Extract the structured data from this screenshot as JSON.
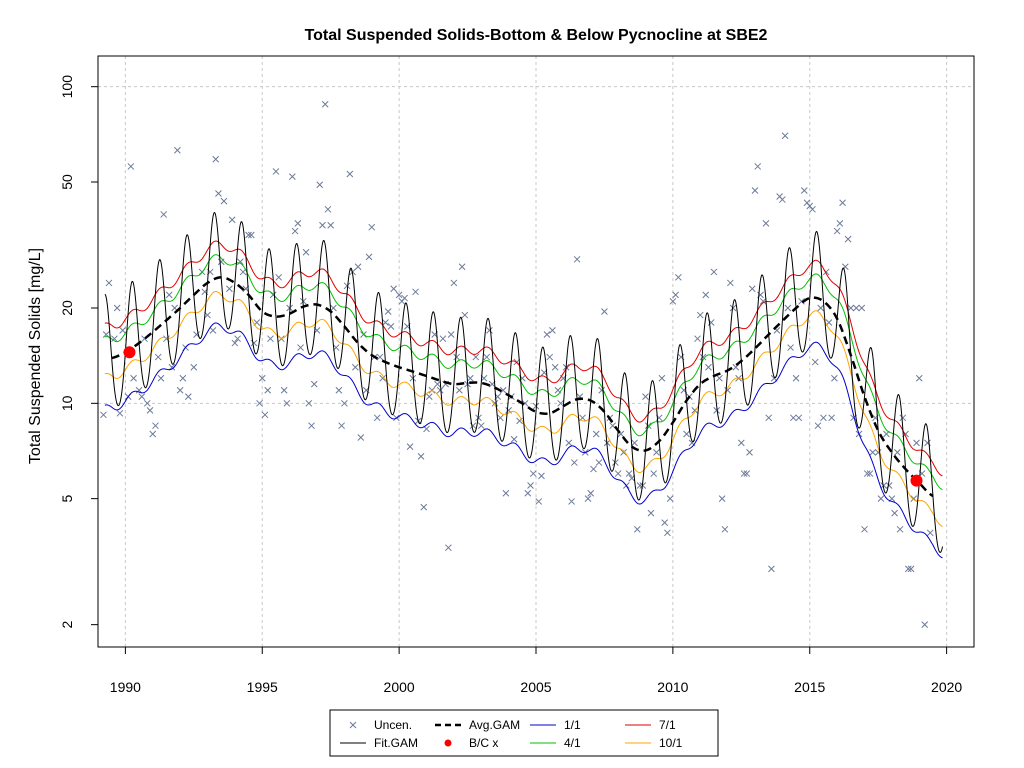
{
  "chart_data": {
    "type": "line",
    "title": "Total Suspended Solids-Bottom & Below Pycnocline at SBE2",
    "xlabel": "",
    "ylabel": "Total Suspended Solids [mg/L]",
    "xlim": [
      1989.0,
      2021.0
    ],
    "ylim": [
      1.7,
      125
    ],
    "y_scale": "log",
    "x_ticks": [
      1990,
      1995,
      2000,
      2005,
      2010,
      2015,
      2020
    ],
    "y_ticks": [
      2,
      5,
      10,
      20,
      50,
      100
    ],
    "grid": true,
    "legend_position": "bottom",
    "legend": [
      {
        "label": "Uncen.",
        "symbol": "x",
        "color": "#6b7a99"
      },
      {
        "label": "Fit.GAM",
        "symbol": "line",
        "color": "#000000"
      },
      {
        "label": "Avg.GAM",
        "symbol": "dashed-line",
        "color": "#000000"
      },
      {
        "label": "B/C x",
        "symbol": "dot",
        "color": "#ff0000"
      },
      {
        "label": "1/1",
        "symbol": "line",
        "color": "#0000cd"
      },
      {
        "label": "4/1",
        "symbol": "line",
        "color": "#00c000"
      },
      {
        "label": "7/1",
        "symbol": "line",
        "color": "#e00000"
      },
      {
        "label": "10/1",
        "symbol": "line",
        "color": "#ffa500"
      }
    ],
    "avg_gam": {
      "x": [
        1989.5,
        1990,
        1990.5,
        1991,
        1991.5,
        1992,
        1992.5,
        1993,
        1993.5,
        1994,
        1994.5,
        1995,
        1995.5,
        1996,
        1996.5,
        1997,
        1997.5,
        1998,
        1998.5,
        1999,
        1999.5,
        2000,
        2000.5,
        2001,
        2001.5,
        2002,
        2002.5,
        2003,
        2003.5,
        2004,
        2004.5,
        2005,
        2005.5,
        2006,
        2006.5,
        2007,
        2007.5,
        2008,
        2008.5,
        2009,
        2009.5,
        2010,
        2010.5,
        2011,
        2011.5,
        2012,
        2012.5,
        2013,
        2013.5,
        2014,
        2014.5,
        2015,
        2015.5,
        2016,
        2016.5,
        2017,
        2017.5,
        2018,
        2018.5,
        2019,
        2019.5
      ],
      "y": [
        13.9,
        14.5,
        15.5,
        16.8,
        18.3,
        20.0,
        22.0,
        24.0,
        25.0,
        24.0,
        22.0,
        19.5,
        18.8,
        19.2,
        20.2,
        20.5,
        19.5,
        17.5,
        15.5,
        14.2,
        13.5,
        13.0,
        12.6,
        12.2,
        11.8,
        11.5,
        11.6,
        11.6,
        11.2,
        10.6,
        10.0,
        9.4,
        9.3,
        9.8,
        10.3,
        10.2,
        9.4,
        8.2,
        7.3,
        7.1,
        7.6,
        8.7,
        10.2,
        11.5,
        12.2,
        12.7,
        13.6,
        14.9,
        16.5,
        18.2,
        20.0,
        21.5,
        21.0,
        18.5,
        14.2,
        10.5,
        8.2,
        7.0,
        6.2,
        5.6,
        5.1
      ]
    },
    "fit_gam_curves": [
      {
        "name": "1/1",
        "color": "#0000cd",
        "ratio": 0.7
      },
      {
        "name": "4/1",
        "color": "#00c000",
        "ratio": 1.15
      },
      {
        "name": "7/1",
        "color": "#e00000",
        "ratio": 1.27
      },
      {
        "name": "10/1",
        "color": "#ffa500",
        "ratio": 0.88
      }
    ],
    "fit_gam": {
      "x_start": 1989.25,
      "x_end": 2019.85,
      "seasonal_amplitude_log": 0.21,
      "peak_month_fraction": 0.25
    },
    "bc_points": [
      {
        "x": 1990.15,
        "y": 14.5
      },
      {
        "x": 2018.9,
        "y": 5.7
      }
    ],
    "observations": [
      [
        1989.2,
        9.2
      ],
      [
        1989.3,
        16.5
      ],
      [
        1989.4,
        24
      ],
      [
        1989.6,
        16
      ],
      [
        1989.7,
        20
      ],
      [
        1989.8,
        9.3
      ],
      [
        1989.9,
        17
      ],
      [
        1990.1,
        10.5
      ],
      [
        1990.2,
        56
      ],
      [
        1990.3,
        12
      ],
      [
        1990.5,
        11
      ],
      [
        1990.6,
        10.5
      ],
      [
        1990.7,
        16
      ],
      [
        1990.8,
        10
      ],
      [
        1990.9,
        9.5
      ],
      [
        1991.0,
        8
      ],
      [
        1991.1,
        8.5
      ],
      [
        1991.2,
        14
      ],
      [
        1991.3,
        12
      ],
      [
        1991.4,
        39.5
      ],
      [
        1991.5,
        16
      ],
      [
        1991.6,
        22
      ],
      [
        1991.7,
        13
      ],
      [
        1991.8,
        20
      ],
      [
        1991.9,
        63
      ],
      [
        1992.0,
        11
      ],
      [
        1992.1,
        12
      ],
      [
        1992.2,
        15
      ],
      [
        1992.3,
        10.5
      ],
      [
        1992.5,
        13
      ],
      [
        1992.6,
        16.5
      ],
      [
        1992.8,
        26
      ],
      [
        1992.9,
        22.5
      ],
      [
        1993.0,
        19
      ],
      [
        1993.1,
        26
      ],
      [
        1993.2,
        17
      ],
      [
        1993.3,
        59
      ],
      [
        1993.4,
        46
      ],
      [
        1993.5,
        28
      ],
      [
        1993.6,
        43.5
      ],
      [
        1993.8,
        23
      ],
      [
        1993.9,
        38
      ],
      [
        1994.0,
        15.5
      ],
      [
        1994.1,
        16
      ],
      [
        1994.2,
        28
      ],
      [
        1994.3,
        26
      ],
      [
        1994.4,
        23
      ],
      [
        1994.5,
        34
      ],
      [
        1994.6,
        34
      ],
      [
        1994.7,
        15.5
      ],
      [
        1994.8,
        18
      ],
      [
        1994.9,
        10
      ],
      [
        1995.0,
        12
      ],
      [
        1995.1,
        9.2
      ],
      [
        1995.2,
        11
      ],
      [
        1995.3,
        16
      ],
      [
        1995.4,
        22
      ],
      [
        1995.5,
        54
      ],
      [
        1995.6,
        25
      ],
      [
        1995.7,
        16
      ],
      [
        1995.8,
        11
      ],
      [
        1995.9,
        10
      ],
      [
        1996.0,
        20
      ],
      [
        1996.1,
        52
      ],
      [
        1996.2,
        35
      ],
      [
        1996.3,
        37
      ],
      [
        1996.4,
        15
      ],
      [
        1996.5,
        21
      ],
      [
        1996.6,
        30
      ],
      [
        1996.7,
        10
      ],
      [
        1996.8,
        8.5
      ],
      [
        1996.9,
        11.5
      ],
      [
        1997.0,
        17
      ],
      [
        1997.1,
        49
      ],
      [
        1997.2,
        36.5
      ],
      [
        1997.3,
        88
      ],
      [
        1997.4,
        41
      ],
      [
        1997.5,
        36.5
      ],
      [
        1997.6,
        20
      ],
      [
        1997.7,
        15
      ],
      [
        1997.8,
        11
      ],
      [
        1997.9,
        8.5
      ],
      [
        1998.0,
        10
      ],
      [
        1998.1,
        23.5
      ],
      [
        1998.2,
        53
      ],
      [
        1998.3,
        26
      ],
      [
        1998.4,
        13
      ],
      [
        1998.5,
        27
      ],
      [
        1998.6,
        7.8
      ],
      [
        1998.7,
        16.5
      ],
      [
        1998.8,
        11
      ],
      [
        1998.9,
        29
      ],
      [
        1999.0,
        36
      ],
      [
        1999.1,
        14
      ],
      [
        1999.2,
        9
      ],
      [
        1999.3,
        14
      ],
      [
        1999.4,
        12
      ],
      [
        1999.5,
        18
      ],
      [
        1999.6,
        19.5
      ],
      [
        1999.7,
        17.5
      ],
      [
        1999.8,
        23
      ],
      [
        1999.9,
        9
      ],
      [
        2000.0,
        22
      ],
      [
        2000.1,
        21
      ],
      [
        2000.2,
        21.5
      ],
      [
        2000.3,
        17.5
      ],
      [
        2000.4,
        7.3
      ],
      [
        2000.5,
        12
      ],
      [
        2000.6,
        22.5
      ],
      [
        2000.7,
        8.8
      ],
      [
        2000.8,
        6.8
      ],
      [
        2000.9,
        4.7
      ],
      [
        2001.0,
        8.3
      ],
      [
        2001.1,
        10.5
      ],
      [
        2001.2,
        11
      ],
      [
        2001.3,
        16.5
      ],
      [
        2001.4,
        11.5
      ],
      [
        2001.5,
        11
      ],
      [
        2001.6,
        16
      ],
      [
        2001.7,
        11.5
      ],
      [
        2001.8,
        3.5
      ],
      [
        2001.9,
        16.5
      ],
      [
        2002.0,
        24
      ],
      [
        2002.1,
        14
      ],
      [
        2002.2,
        11
      ],
      [
        2002.3,
        27
      ],
      [
        2002.4,
        19
      ],
      [
        2002.5,
        11.5
      ],
      [
        2002.6,
        12
      ],
      [
        2002.7,
        8.5
      ],
      [
        2002.8,
        14
      ],
      [
        2002.9,
        9
      ],
      [
        2003.0,
        8.5
      ],
      [
        2003.1,
        12
      ],
      [
        2003.2,
        14
      ],
      [
        2003.3,
        17
      ],
      [
        2003.4,
        11.5
      ],
      [
        2003.5,
        10
      ],
      [
        2003.6,
        10.5
      ],
      [
        2003.7,
        9
      ],
      [
        2003.8,
        11
      ],
      [
        2003.9,
        5.2
      ],
      [
        2004.0,
        9.5
      ],
      [
        2004.1,
        10.5
      ],
      [
        2004.2,
        7.7
      ],
      [
        2004.3,
        13.5
      ],
      [
        2004.4,
        8.8
      ],
      [
        2004.5,
        12
      ],
      [
        2004.6,
        10
      ],
      [
        2004.7,
        5.2
      ],
      [
        2004.8,
        5.5
      ],
      [
        2004.9,
        6
      ],
      [
        2005.0,
        9.8
      ],
      [
        2005.1,
        4.9
      ],
      [
        2005.2,
        5.9
      ],
      [
        2005.3,
        12.5
      ],
      [
        2005.4,
        16.5
      ],
      [
        2005.5,
        14
      ],
      [
        2005.6,
        17
      ],
      [
        2005.7,
        13
      ],
      [
        2005.8,
        11
      ],
      [
        2005.9,
        10
      ],
      [
        2006.0,
        12
      ],
      [
        2006.1,
        13
      ],
      [
        2006.2,
        7.5
      ],
      [
        2006.3,
        4.9
      ],
      [
        2006.4,
        6.5
      ],
      [
        2006.5,
        28.5
      ],
      [
        2006.6,
        10.5
      ],
      [
        2006.7,
        9
      ],
      [
        2006.8,
        7
      ],
      [
        2006.9,
        5
      ],
      [
        2007.0,
        5.2
      ],
      [
        2007.1,
        6.2
      ],
      [
        2007.2,
        8
      ],
      [
        2007.3,
        6.5
      ],
      [
        2007.4,
        11
      ],
      [
        2007.5,
        19.5
      ],
      [
        2007.6,
        7.5
      ],
      [
        2007.7,
        9
      ],
      [
        2007.8,
        8.5
      ],
      [
        2007.9,
        6.5
      ],
      [
        2008.0,
        6
      ],
      [
        2008.1,
        8
      ],
      [
        2008.2,
        7
      ],
      [
        2008.3,
        5.5
      ],
      [
        2008.4,
        6
      ],
      [
        2008.5,
        5.8
      ],
      [
        2008.6,
        7.5
      ],
      [
        2008.7,
        4
      ],
      [
        2008.8,
        5.5
      ],
      [
        2008.9,
        5.5
      ],
      [
        2009.0,
        10.5
      ],
      [
        2009.1,
        8.5
      ],
      [
        2009.2,
        4.5
      ],
      [
        2009.3,
        6
      ],
      [
        2009.4,
        7
      ],
      [
        2009.5,
        9
      ],
      [
        2009.6,
        12
      ],
      [
        2009.7,
        4.2
      ],
      [
        2009.8,
        3.9
      ],
      [
        2009.9,
        5
      ],
      [
        2010.0,
        21
      ],
      [
        2010.1,
        22
      ],
      [
        2010.2,
        25
      ],
      [
        2010.3,
        14
      ],
      [
        2010.4,
        11
      ],
      [
        2010.5,
        8
      ],
      [
        2010.6,
        10.5
      ],
      [
        2010.7,
        7.5
      ],
      [
        2010.8,
        9.5
      ],
      [
        2010.9,
        16
      ],
      [
        2011.0,
        19
      ],
      [
        2011.1,
        14
      ],
      [
        2011.2,
        22
      ],
      [
        2011.3,
        13
      ],
      [
        2011.4,
        18
      ],
      [
        2011.5,
        26
      ],
      [
        2011.6,
        9.5
      ],
      [
        2011.7,
        12
      ],
      [
        2011.8,
        5
      ],
      [
        2011.9,
        4
      ],
      [
        2012.0,
        11
      ],
      [
        2012.1,
        24
      ],
      [
        2012.2,
        20
      ],
      [
        2012.3,
        13
      ],
      [
        2012.4,
        12
      ],
      [
        2012.5,
        7.5
      ],
      [
        2012.6,
        6
      ],
      [
        2012.7,
        6
      ],
      [
        2012.8,
        7
      ],
      [
        2012.9,
        23
      ],
      [
        2013.0,
        47
      ],
      [
        2013.1,
        56
      ],
      [
        2013.2,
        22
      ],
      [
        2013.3,
        21
      ],
      [
        2013.4,
        37
      ],
      [
        2013.5,
        9
      ],
      [
        2013.6,
        3
      ],
      [
        2013.7,
        12
      ],
      [
        2013.8,
        17
      ],
      [
        2013.9,
        45
      ],
      [
        2014.0,
        44
      ],
      [
        2014.1,
        70
      ],
      [
        2014.2,
        20
      ],
      [
        2014.3,
        15
      ],
      [
        2014.4,
        9
      ],
      [
        2014.5,
        12
      ],
      [
        2014.6,
        9
      ],
      [
        2014.7,
        21
      ],
      [
        2014.8,
        47
      ],
      [
        2014.9,
        43
      ],
      [
        2015.0,
        42
      ],
      [
        2015.1,
        41
      ],
      [
        2015.2,
        13.5
      ],
      [
        2015.3,
        8.5
      ],
      [
        2015.4,
        20
      ],
      [
        2015.5,
        9
      ],
      [
        2015.6,
        26
      ],
      [
        2015.7,
        18
      ],
      [
        2015.8,
        9
      ],
      [
        2015.9,
        12
      ],
      [
        2016.0,
        35
      ],
      [
        2016.1,
        37
      ],
      [
        2016.2,
        43
      ],
      [
        2016.3,
        27
      ],
      [
        2016.4,
        33
      ],
      [
        2016.5,
        20
      ],
      [
        2016.6,
        9
      ],
      [
        2016.7,
        20
      ],
      [
        2016.8,
        8
      ],
      [
        2016.9,
        20
      ],
      [
        2017.0,
        4
      ],
      [
        2017.1,
        6
      ],
      [
        2017.2,
        6
      ],
      [
        2017.3,
        7
      ],
      [
        2017.4,
        9
      ],
      [
        2017.5,
        7
      ],
      [
        2017.6,
        5
      ],
      [
        2017.7,
        5.5
      ],
      [
        2017.8,
        8
      ],
      [
        2017.9,
        5.5
      ],
      [
        2018.0,
        5
      ],
      [
        2018.1,
        4.5
      ],
      [
        2018.2,
        7
      ],
      [
        2018.3,
        4
      ],
      [
        2018.4,
        9
      ],
      [
        2018.5,
        8
      ],
      [
        2018.6,
        3
      ],
      [
        2018.7,
        3
      ],
      [
        2018.8,
        5
      ],
      [
        2018.9,
        7.5
      ],
      [
        2019.0,
        12
      ],
      [
        2019.1,
        6
      ],
      [
        2019.2,
        2
      ],
      [
        2019.3,
        7.5
      ],
      [
        2019.4,
        3.9
      ]
    ]
  }
}
